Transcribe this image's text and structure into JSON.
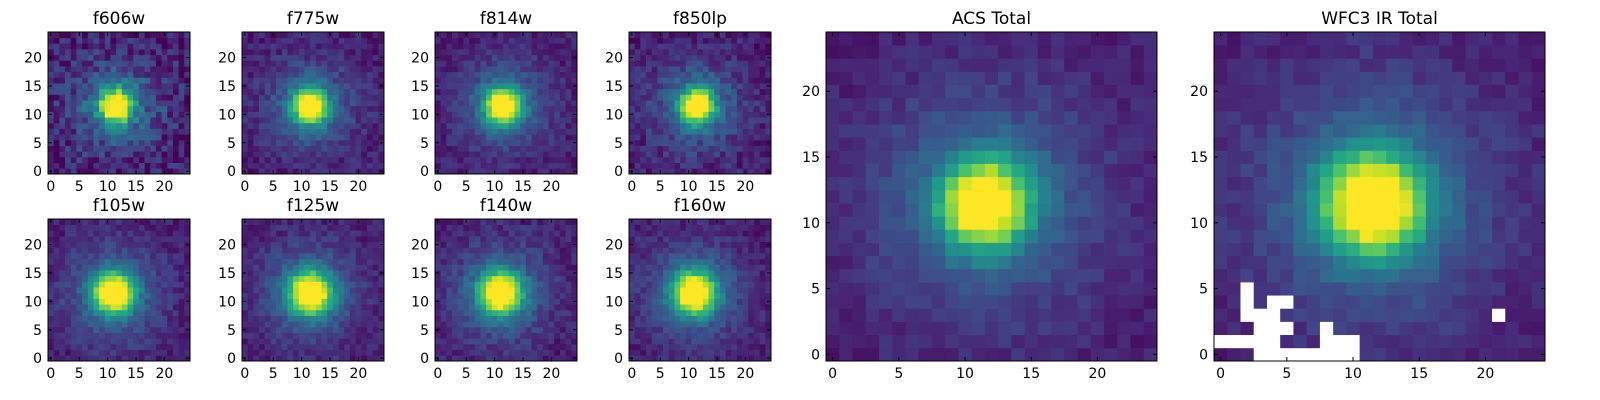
{
  "figure": {
    "colormap": "viridis",
    "colors": {
      "low": "#440154",
      "mid": "#21918c",
      "high": "#fde725",
      "masked": "#ffffff",
      "axis": "#000000"
    }
  },
  "chart_data": [
    {
      "type": "heatmap",
      "title": "f606w",
      "image_size": 25,
      "center": [
        11.5,
        11.5
      ],
      "core_sigma": 2.0,
      "halo_sigma": 5.5,
      "noise": 0.26,
      "xticks": [
        0,
        5,
        10,
        15,
        20
      ],
      "yticks": [
        0,
        5,
        10,
        15,
        20
      ],
      "xlim": [
        -0.5,
        24.5
      ],
      "ylim": [
        -0.5,
        24.5
      ],
      "grid": false
    },
    {
      "type": "heatmap",
      "title": "f775w",
      "image_size": 25,
      "center": [
        11.5,
        11.5
      ],
      "core_sigma": 2.0,
      "halo_sigma": 5.5,
      "noise": 0.16,
      "xticks": [
        0,
        5,
        10,
        15,
        20
      ],
      "yticks": [
        0,
        5,
        10,
        15,
        20
      ],
      "xlim": [
        -0.5,
        24.5
      ],
      "ylim": [
        -0.5,
        24.5
      ],
      "grid": false
    },
    {
      "type": "heatmap",
      "title": "f814w",
      "image_size": 25,
      "center": [
        11.5,
        11.5
      ],
      "core_sigma": 2.1,
      "halo_sigma": 5.5,
      "noise": 0.14,
      "xticks": [
        0,
        5,
        10,
        15,
        20
      ],
      "yticks": [
        0,
        5,
        10,
        15,
        20
      ],
      "xlim": [
        -0.5,
        24.5
      ],
      "ylim": [
        -0.5,
        24.5
      ],
      "grid": false
    },
    {
      "type": "heatmap",
      "title": "f850lp",
      "image_size": 25,
      "center": [
        11.5,
        11.5
      ],
      "core_sigma": 2.0,
      "halo_sigma": 5.5,
      "noise": 0.18,
      "xticks": [
        0,
        5,
        10,
        15,
        20
      ],
      "yticks": [
        0,
        5,
        10,
        15,
        20
      ],
      "xlim": [
        -0.5,
        24.5
      ],
      "ylim": [
        -0.5,
        24.5
      ],
      "grid": false
    },
    {
      "type": "heatmap",
      "title": "f105w",
      "image_size": 25,
      "center": [
        11.0,
        11.5
      ],
      "core_sigma": 2.4,
      "halo_sigma": 6.0,
      "noise": 0.14,
      "xticks": [
        0,
        5,
        10,
        15,
        20
      ],
      "yticks": [
        0,
        5,
        10,
        15,
        20
      ],
      "xlim": [
        -0.5,
        24.5
      ],
      "ylim": [
        -0.5,
        24.5
      ],
      "grid": false
    },
    {
      "type": "heatmap",
      "title": "f125w",
      "image_size": 25,
      "center": [
        11.5,
        11.5
      ],
      "core_sigma": 2.5,
      "halo_sigma": 6.0,
      "noise": 0.14,
      "xticks": [
        0,
        5,
        10,
        15,
        20
      ],
      "yticks": [
        0,
        5,
        10,
        15,
        20
      ],
      "xlim": [
        -0.5,
        24.5
      ],
      "ylim": [
        -0.5,
        24.5
      ],
      "grid": false
    },
    {
      "type": "heatmap",
      "title": "f140w",
      "image_size": 25,
      "center": [
        11.0,
        11.5
      ],
      "core_sigma": 2.5,
      "halo_sigma": 6.0,
      "noise": 0.15,
      "xticks": [
        0,
        5,
        10,
        15,
        20
      ],
      "yticks": [
        0,
        5,
        10,
        15,
        20
      ],
      "xlim": [
        -0.5,
        24.5
      ],
      "ylim": [
        -0.5,
        24.5
      ],
      "grid": false
    },
    {
      "type": "heatmap",
      "title": "f160w",
      "image_size": 25,
      "center": [
        11.0,
        11.5
      ],
      "core_sigma": 2.5,
      "halo_sigma": 6.0,
      "noise": 0.14,
      "xticks": [
        0,
        5,
        10,
        15,
        20
      ],
      "yticks": [
        0,
        5,
        10,
        15,
        20
      ],
      "xlim": [
        -0.5,
        24.5
      ],
      "ylim": [
        -0.5,
        24.5
      ],
      "grid": false
    },
    {
      "type": "heatmap",
      "title": "ACS Total",
      "image_size": 25,
      "center": [
        11.5,
        11.5
      ],
      "core_sigma": 2.2,
      "halo_sigma": 6.0,
      "noise": 0.1,
      "xticks": [
        0,
        5,
        10,
        15,
        20
      ],
      "yticks": [
        0,
        5,
        10,
        15,
        20
      ],
      "xlim": [
        -0.5,
        24.5
      ],
      "ylim": [
        -0.5,
        24.5
      ],
      "grid": false
    },
    {
      "type": "heatmap",
      "title": "WFC3 IR Total",
      "image_size": 25,
      "center": [
        11.5,
        11.5
      ],
      "core_sigma": 2.6,
      "halo_sigma": 6.5,
      "noise": 0.1,
      "xticks": [
        0,
        5,
        10,
        15,
        20
      ],
      "yticks": [
        0,
        5,
        10,
        15,
        20
      ],
      "xlim": [
        -0.5,
        24.5
      ],
      "ylim": [
        -0.5,
        24.5
      ],
      "grid": false,
      "masked_pixels": [
        [
          2,
          5
        ],
        [
          2,
          4
        ],
        [
          2,
          3
        ],
        [
          3,
          3
        ],
        [
          4,
          4
        ],
        [
          5,
          4
        ],
        [
          4,
          3
        ],
        [
          3,
          2
        ],
        [
          4,
          2
        ],
        [
          5,
          2
        ],
        [
          0,
          1
        ],
        [
          1,
          1
        ],
        [
          2,
          1
        ],
        [
          3,
          1
        ],
        [
          4,
          1
        ],
        [
          3,
          0
        ],
        [
          4,
          0
        ],
        [
          5,
          0
        ],
        [
          6,
          0
        ],
        [
          7,
          0
        ],
        [
          8,
          0
        ],
        [
          9,
          0
        ],
        [
          10,
          0
        ],
        [
          8,
          1
        ],
        [
          9,
          1
        ],
        [
          10,
          1
        ],
        [
          8,
          2
        ],
        [
          21,
          3
        ]
      ]
    }
  ]
}
